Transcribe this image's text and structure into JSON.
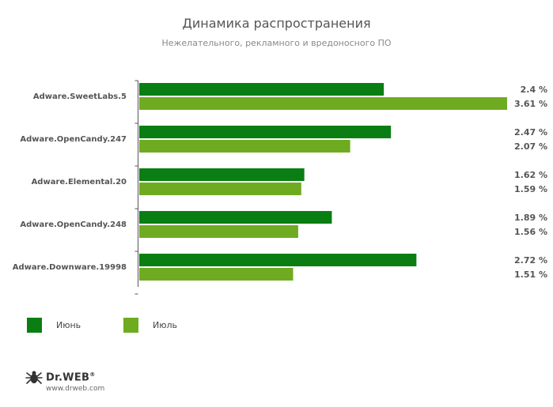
{
  "chart_data": {
    "type": "bar",
    "orientation": "horizontal",
    "title": "Динамика распространения",
    "subtitle": "Нежелательного, рекламного и вредоносного ПО",
    "categories": [
      "Adware.SweetLabs.5",
      "Adware.OpenCandy.247",
      "Adware.Elemental.20",
      "Adware.OpenCandy.248",
      "Adware.Downware.19998"
    ],
    "series": [
      {
        "name": "Июнь",
        "color": "#0a7e12",
        "values": [
          2.4,
          2.47,
          1.62,
          1.89,
          2.72
        ],
        "labels": [
          "2.4 %",
          "2.47 %",
          "1.62 %",
          "1.89 %",
          "2.72 %"
        ]
      },
      {
        "name": "Июль",
        "color": "#6fab21",
        "values": [
          3.61,
          2.07,
          1.59,
          1.56,
          1.51
        ],
        "labels": [
          "3.61 %",
          "2.07 %",
          "1.59 %",
          "1.56 %",
          "1.51 %"
        ]
      }
    ],
    "xlim": [
      0,
      3.61
    ],
    "grid": false,
    "legend_position": "bottom-left"
  },
  "branding": {
    "logo_text": "Dr.WEB",
    "logo_mark": "®",
    "logo_icon": "spider-icon",
    "website": "www.drweb.com"
  }
}
